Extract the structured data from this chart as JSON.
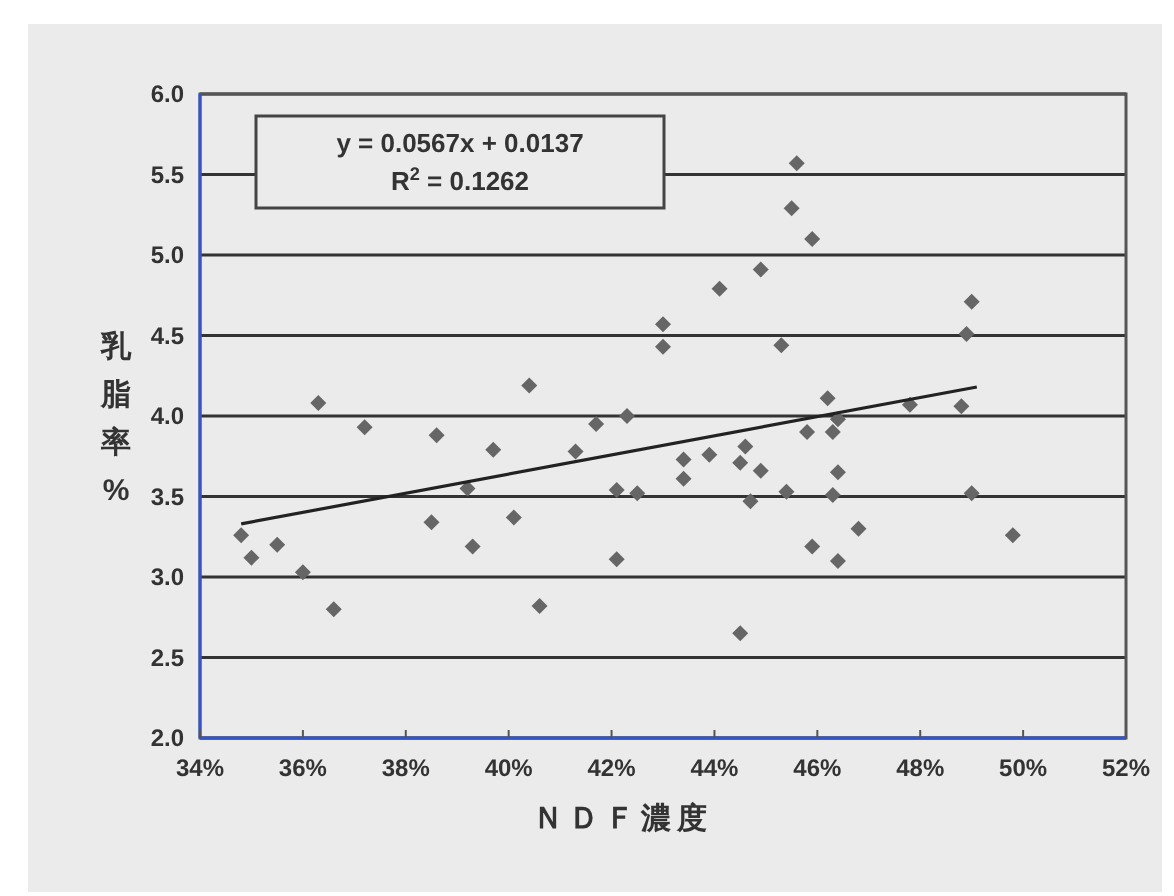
{
  "chart_data": {
    "type": "scatter",
    "xlabel": "ＮＤＦ濃度",
    "ylabel": "乳脂率%",
    "xlim": [
      34,
      52
    ],
    "ylim": [
      2,
      6
    ],
    "xticks": [
      {
        "value": 34,
        "label": "34%"
      },
      {
        "value": 36,
        "label": "36%"
      },
      {
        "value": 38,
        "label": "38%"
      },
      {
        "value": 40,
        "label": "40%"
      },
      {
        "value": 42,
        "label": "42%"
      },
      {
        "value": 44,
        "label": "44%"
      },
      {
        "value": 46,
        "label": "46%"
      },
      {
        "value": 48,
        "label": "48%"
      },
      {
        "value": 50,
        "label": "50%"
      },
      {
        "value": 52,
        "label": "52%"
      }
    ],
    "yticks": [
      {
        "value": 2,
        "label": "2.0"
      },
      {
        "value": 2.5,
        "label": "2.5"
      },
      {
        "value": 3,
        "label": "3.0"
      },
      {
        "value": 3.5,
        "label": "3.5"
      },
      {
        "value": 4,
        "label": "4.0"
      },
      {
        "value": 4.5,
        "label": "4.5"
      },
      {
        "value": 5,
        "label": "5.0"
      },
      {
        "value": 5.5,
        "label": "5.5"
      },
      {
        "value": 6,
        "label": "6.0"
      }
    ],
    "grid": "y",
    "marker": "diamond",
    "annotations": [
      "y = 0.0567x + 0.0137",
      "R$^{2}$ = 0.1262"
    ],
    "series": [
      {
        "color": "#666666",
        "x": [
          34.8,
          35.0,
          35.5,
          36.0,
          36.3,
          36.6,
          37.2,
          38.6,
          38.5,
          39.3,
          39.7,
          39.2,
          40.1,
          40.4,
          40.6,
          41.3,
          41.7,
          42.3,
          42.1,
          42.5,
          42.1,
          43.0,
          43.0,
          43.4,
          43.4,
          43.9,
          44.1,
          44.5,
          44.6,
          44.7,
          44.5,
          44.9,
          44.9,
          45.3,
          45.4,
          45.5,
          45.6,
          45.9,
          45.8,
          45.9,
          46.2,
          46.3,
          46.4,
          46.3,
          46.4,
          46.4,
          46.8,
          47.8,
          48.8,
          48.9,
          49.0,
          49.0,
          49.8
        ],
        "values": [
          3.26,
          3.12,
          3.2,
          3.03,
          4.08,
          2.8,
          3.93,
          3.88,
          3.34,
          3.19,
          3.79,
          3.55,
          3.37,
          4.19,
          2.82,
          3.78,
          3.95,
          4.0,
          3.54,
          3.52,
          3.11,
          4.57,
          4.43,
          3.61,
          3.73,
          3.76,
          4.79,
          3.71,
          3.81,
          3.47,
          2.65,
          3.66,
          4.91,
          4.44,
          3.53,
          5.29,
          5.57,
          5.1,
          3.9,
          3.19,
          4.11,
          3.9,
          3.65,
          3.51,
          3.1,
          3.98,
          3.3,
          4.07,
          4.06,
          4.51,
          4.71,
          3.52,
          3.26
        ]
      },
      {
        "type": "line",
        "color": "#222222",
        "x": [
          34.8,
          49.1
        ],
        "values": [
          3.33,
          4.18
        ],
        "line_style": "solid",
        "marker": "none"
      }
    ]
  }
}
